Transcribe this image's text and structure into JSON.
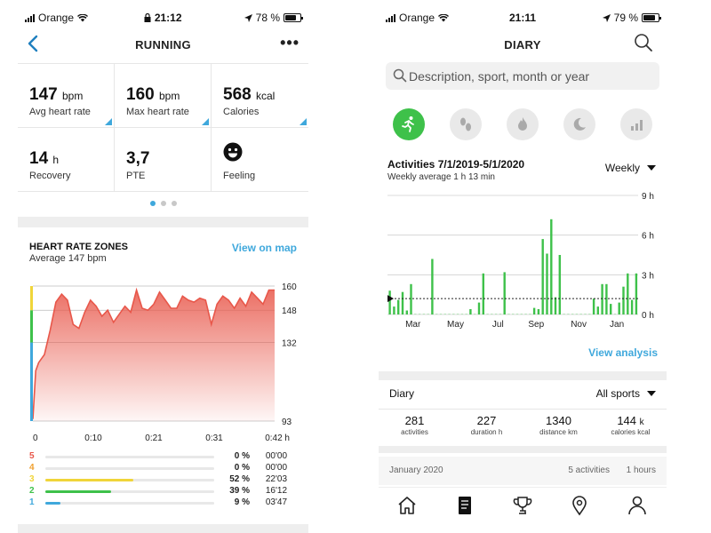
{
  "left": {
    "status": {
      "carrier": "Orange",
      "time": "21:12",
      "battery": "78 %",
      "battery_level": 0.78
    },
    "nav": {
      "title": "RUNNING",
      "more": "•••"
    },
    "stats": [
      {
        "value": "147",
        "unit": "bpm",
        "label": "Avg heart rate"
      },
      {
        "value": "160",
        "unit": "bpm",
        "label": "Max heart rate"
      },
      {
        "value": "568",
        "unit": "kcal",
        "label": "Calories"
      },
      {
        "value": "14",
        "unit": "h",
        "label": "Recovery"
      },
      {
        "value": "3,7",
        "unit": "",
        "label": "PTE"
      },
      {
        "value": "",
        "unit": "",
        "label": "Feeling",
        "icon": "smiley-face-icon"
      }
    ],
    "pager": {
      "count": 3,
      "active": 0
    },
    "hr": {
      "title": "HEART RATE ZONES",
      "subtitle": "Average 147 bpm",
      "link": "View on map"
    },
    "chart_data": {
      "type": "area",
      "title": "HEART RATE ZONES",
      "x_tick_labels": [
        "0",
        "0:10",
        "0:21",
        "0:31",
        "0:42 h"
      ],
      "y_tick_labels": [
        "160",
        "148",
        "132",
        "93"
      ],
      "y_ticks": [
        160,
        148,
        132,
        93
      ],
      "ylim": [
        93,
        160
      ],
      "xlim": [
        0,
        42
      ],
      "color": "#e8574a",
      "zone_colors": [
        "#3fa8dc",
        "#3ec14a",
        "#f0d53a",
        "#f0a030",
        "#e8574a"
      ],
      "x": [
        0,
        0.5,
        1,
        1.5,
        2,
        3,
        4,
        5,
        6,
        7,
        8,
        9,
        10,
        11,
        12,
        13,
        14,
        15,
        16,
        17,
        18,
        19,
        20,
        21,
        22,
        23,
        24,
        25,
        26,
        27,
        28,
        29,
        30,
        31,
        32,
        33,
        34,
        35,
        36,
        37,
        38,
        39,
        40,
        41,
        42
      ],
      "y": [
        94,
        118,
        122,
        124,
        126,
        138,
        152,
        156,
        153,
        141,
        139,
        147,
        153,
        150,
        145,
        148,
        142,
        146,
        150,
        147,
        158,
        149,
        148,
        151,
        157,
        153,
        149,
        149,
        155,
        153,
        152,
        154,
        153,
        141,
        151,
        155,
        153,
        149,
        154,
        150,
        157,
        154,
        151,
        158,
        158
      ]
    },
    "zones": [
      {
        "n": "5",
        "pct": "0 %",
        "dur": "00'00",
        "color": "#e8574a",
        "fraction": 0.0
      },
      {
        "n": "4",
        "pct": "0 %",
        "dur": "00'00",
        "color": "#f0a030",
        "fraction": 0.0
      },
      {
        "n": "3",
        "pct": "52 %",
        "dur": "22'03",
        "color": "#f0d53a",
        "fraction": 0.52
      },
      {
        "n": "2",
        "pct": "39 %",
        "dur": "16'12",
        "color": "#3ec14a",
        "fraction": 0.39
      },
      {
        "n": "1",
        "pct": "9 %",
        "dur": "03'47",
        "color": "#3fa8dc",
        "fraction": 0.09
      }
    ]
  },
  "right": {
    "status": {
      "carrier": "Orange",
      "time": "21:11",
      "battery": "79 %",
      "battery_level": 0.79
    },
    "nav": {
      "title": "DIARY"
    },
    "search": {
      "placeholder": "Description, sport, month or year"
    },
    "sport_icons": [
      "running-icon",
      "footprints-icon",
      "flame-icon",
      "moon-icon",
      "chart-icon"
    ],
    "activities": {
      "title": "Activities 7/1/2019-5/1/2020",
      "subtitle": "Weekly average 1 h 13 min",
      "period": "Weekly"
    },
    "chart_data": {
      "type": "bar",
      "color": "#3ec14a",
      "ylim": [
        0,
        9
      ],
      "y_tick_labels": [
        "9 h",
        "6 h",
        "3 h",
        "0 h"
      ],
      "y_ticks": [
        9,
        6,
        3,
        0
      ],
      "x_tick_labels": [
        "Mar",
        "May",
        "Jul",
        "Sep",
        "Nov",
        "Jan"
      ],
      "x_ticks": [
        6,
        16,
        26,
        35,
        45,
        54
      ],
      "average": 1.2,
      "values": [
        1.8,
        0.6,
        1.1,
        1.7,
        0.3,
        2.3,
        0,
        0,
        0,
        0,
        4.2,
        0,
        0,
        0,
        0,
        0,
        0,
        0,
        0,
        0.4,
        0,
        0.9,
        3.1,
        0,
        0,
        0,
        0,
        3.2,
        0,
        0,
        0,
        0,
        0,
        0,
        0.5,
        0.4,
        5.7,
        4.6,
        7.2,
        1.3,
        4.5,
        0,
        0,
        0,
        0,
        0,
        0,
        0,
        1.2,
        0.6,
        2.3,
        2.3,
        0.8,
        0,
        0.9,
        2.1,
        3.1,
        1.1,
        3.1
      ]
    },
    "analysis_link": "View analysis",
    "diary": {
      "label": "Diary",
      "filter": "All sports"
    },
    "summary": [
      {
        "value": "281",
        "unit": "",
        "label": "activities"
      },
      {
        "value": "227",
        "unit": "",
        "label": "duration h"
      },
      {
        "value": "1340",
        "unit": "",
        "label": "distance km"
      },
      {
        "value": "144",
        "unit": "k",
        "label": "calories kcal"
      }
    ],
    "month": {
      "name": "January 2020",
      "activities": "5 activities",
      "hours": "1 hours"
    },
    "tabs": [
      "home-icon",
      "diary-icon",
      "trophy-icon",
      "map-pin-icon",
      "profile-icon"
    ]
  }
}
